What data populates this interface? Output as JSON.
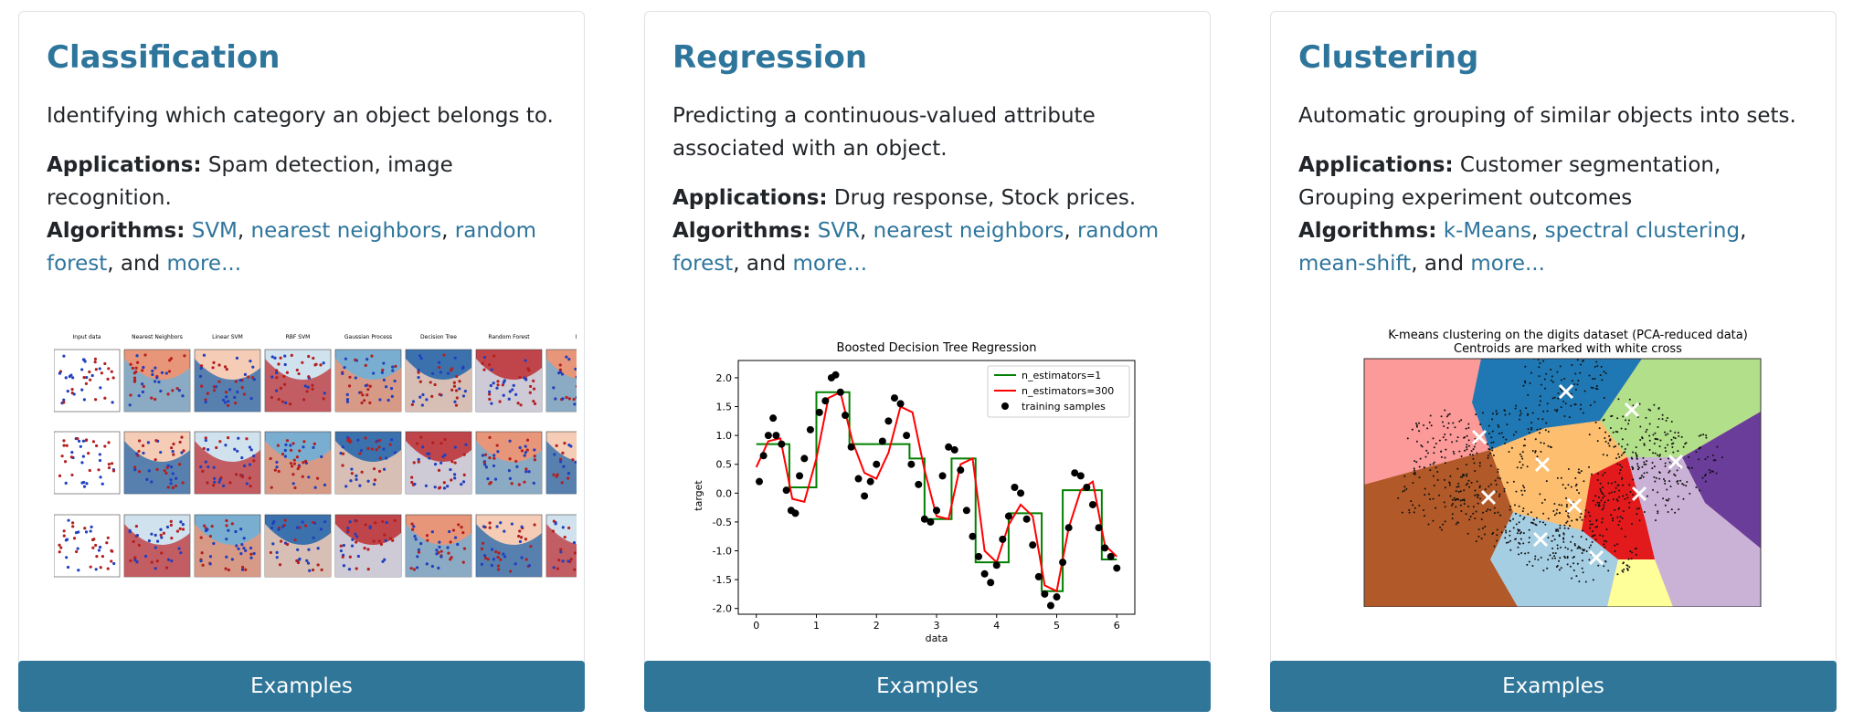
{
  "cards": [
    {
      "title": "Classification",
      "description": "Identifying which category an object belongs to.",
      "applications_label": "Applications:",
      "applications": "Spam detection, image recognition.",
      "algorithms_label": "Algorithms:",
      "algorithms": [
        "SVM",
        "nearest neighbors",
        "random forest"
      ],
      "and_text": "and",
      "more": "more...",
      "image": {
        "column_titles": [
          "Input data",
          "Nearest Neighbors",
          "Linear SVM",
          "RBF SVM",
          "Gaussian Process",
          "Decision Tree",
          "Random Forest",
          "Ne"
        ]
      },
      "button": "Examples"
    },
    {
      "title": "Regression",
      "description": "Predicting a continuous-valued attribute associated with an object.",
      "applications_label": "Applications:",
      "applications": "Drug response, Stock prices.",
      "algorithms_label": "Algorithms:",
      "algorithms": [
        "SVR",
        "nearest neighbors",
        "random forest"
      ],
      "and_text": "and",
      "more": "more...",
      "chart_data": {
        "type": "line",
        "title": "Boosted Decision Tree Regression",
        "xlabel": "data",
        "ylabel": "target",
        "xlim": [
          -0.3,
          6.3
        ],
        "ylim": [
          -2.1,
          2.3
        ],
        "x_ticks": [
          0,
          1,
          2,
          3,
          4,
          5,
          6
        ],
        "y_ticks": [
          2.0,
          1.5,
          1.0,
          0.5,
          0.0,
          -0.5,
          -1.0,
          -1.5,
          -2.0
        ],
        "legend": [
          "n_estimators=1",
          "n_estimators=300",
          "training samples"
        ],
        "legend_position": "top-right",
        "series": [
          {
            "name": "n_estimators=1",
            "color": "#008000",
            "x": [
              0.0,
              0.55,
              0.55,
              1.0,
              1.0,
              1.55,
              1.55,
              2.55,
              2.55,
              2.8,
              2.8,
              3.1,
              3.1,
              3.25,
              3.25,
              3.6,
              3.6,
              3.65,
              3.65,
              4.2,
              4.2,
              4.3,
              4.3,
              4.75,
              4.75,
              4.85,
              4.85,
              5.1,
              5.1,
              5.25,
              5.25,
              5.75,
              5.75,
              6.0
            ],
            "y": [
              0.85,
              0.85,
              0.1,
              0.1,
              1.75,
              1.75,
              0.85,
              0.85,
              0.6,
              0.6,
              -0.45,
              -0.45,
              -0.45,
              -0.45,
              0.6,
              0.6,
              0.6,
              0.6,
              -1.2,
              -1.2,
              -0.35,
              -0.35,
              -0.35,
              -0.35,
              -1.7,
              -1.7,
              -1.7,
              -1.7,
              0.05,
              0.05,
              0.05,
              0.05,
              -1.15,
              -1.15
            ]
          },
          {
            "name": "n_estimators=300",
            "color": "#ff0000",
            "x": [
              0.0,
              0.2,
              0.4,
              0.6,
              0.8,
              1.0,
              1.2,
              1.4,
              1.6,
              1.8,
              2.0,
              2.2,
              2.4,
              2.6,
              2.8,
              3.0,
              3.2,
              3.4,
              3.6,
              3.8,
              4.0,
              4.2,
              4.4,
              4.6,
              4.8,
              5.0,
              5.2,
              5.4,
              5.6,
              5.8,
              6.0
            ],
            "y": [
              0.45,
              0.9,
              0.95,
              -0.1,
              -0.15,
              0.6,
              1.65,
              1.75,
              0.9,
              0.35,
              0.25,
              0.7,
              1.5,
              1.4,
              0.4,
              -0.4,
              -0.45,
              0.5,
              0.6,
              -1.0,
              -1.2,
              -0.55,
              -0.2,
              -0.4,
              -1.6,
              -1.7,
              -0.6,
              0.05,
              0.2,
              -0.9,
              -1.1
            ]
          },
          {
            "name": "training samples",
            "color": "#000000",
            "marker": "o",
            "x": [
              0.05,
              0.12,
              0.2,
              0.28,
              0.33,
              0.42,
              0.5,
              0.58,
              0.65,
              0.72,
              0.8,
              0.9,
              1.05,
              1.15,
              1.25,
              1.32,
              1.4,
              1.48,
              1.58,
              1.7,
              1.8,
              1.9,
              2.0,
              2.1,
              2.2,
              2.3,
              2.4,
              2.5,
              2.58,
              2.7,
              2.8,
              2.9,
              3.0,
              3.1,
              3.2,
              3.3,
              3.4,
              3.5,
              3.6,
              3.7,
              3.8,
              3.9,
              4.0,
              4.1,
              4.2,
              4.3,
              4.4,
              4.5,
              4.6,
              4.7,
              4.8,
              4.9,
              5.0,
              5.1,
              5.2,
              5.3,
              5.4,
              5.5,
              5.6,
              5.7,
              5.8,
              5.9,
              6.0
            ],
            "y": [
              0.2,
              0.65,
              1.0,
              1.3,
              1.0,
              0.85,
              0.05,
              -0.3,
              -0.35,
              0.3,
              0.6,
              1.1,
              1.4,
              1.6,
              2.0,
              2.05,
              1.75,
              1.35,
              0.8,
              0.25,
              -0.05,
              0.2,
              0.5,
              0.9,
              1.25,
              1.65,
              1.55,
              1.0,
              0.5,
              0.15,
              -0.45,
              -0.5,
              -0.3,
              0.3,
              0.8,
              0.75,
              0.4,
              -0.3,
              -0.75,
              -1.1,
              -1.4,
              -1.55,
              -1.25,
              -0.8,
              -0.4,
              0.1,
              0.0,
              -0.45,
              -0.9,
              -1.45,
              -1.75,
              -1.95,
              -1.8,
              -1.2,
              -0.6,
              0.35,
              0.3,
              0.1,
              -0.2,
              -0.6,
              -0.95,
              -1.1,
              -1.3
            ]
          }
        ]
      },
      "button": "Examples"
    },
    {
      "title": "Clustering",
      "description": "Automatic grouping of similar objects into sets.",
      "applications_label": "Applications:",
      "applications": "Customer segmentation, Grouping experiment outcomes",
      "algorithms_label": "Algorithms:",
      "algorithms": [
        "k-Means",
        "spectral clustering",
        "mean-shift"
      ],
      "and_text": "and",
      "more": "more...",
      "image": {
        "title_line1": "K-means clustering on the digits dataset (PCA-reduced data)",
        "title_line2": "Centroids are marked with white cross"
      },
      "button": "Examples"
    }
  ],
  "colors": {
    "accent": "#2e759c",
    "button": "#2f7699"
  }
}
